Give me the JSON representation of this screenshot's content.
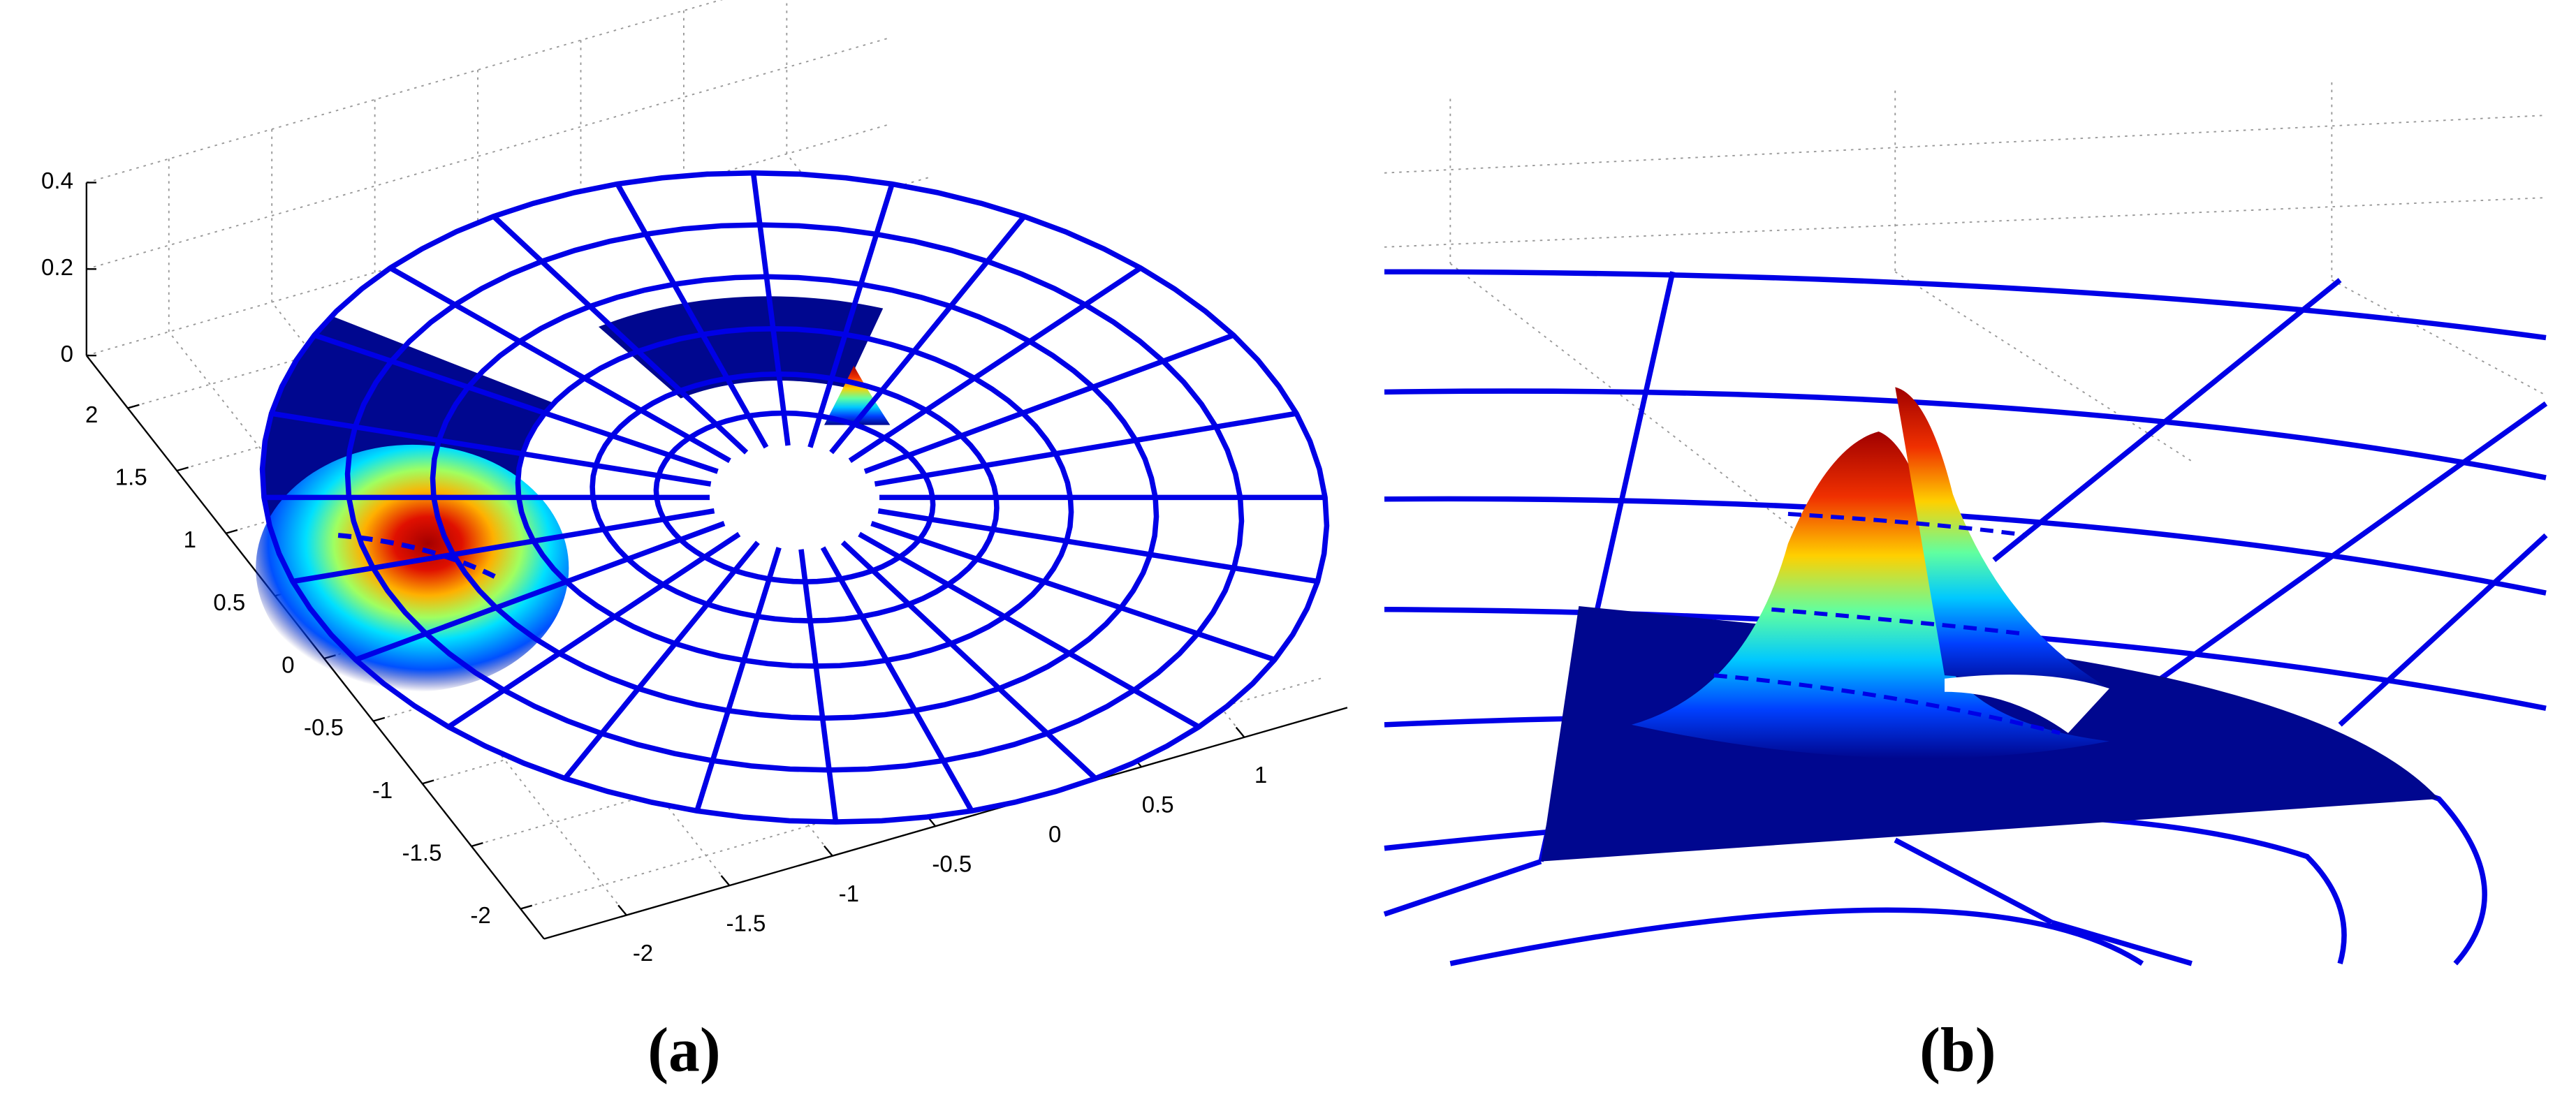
{
  "chart_data": [
    {
      "type": "surface3d",
      "label": "(a)",
      "xlim": [
        -2.4,
        1.5
      ],
      "xticks": [
        -2,
        -1.5,
        -1,
        -0.5,
        0,
        0.5,
        1
      ],
      "ylim": [
        -2.24,
        2.42
      ],
      "yticks": [
        -2,
        -1.5,
        -1,
        -0.5,
        0,
        0.5,
        1,
        1.5,
        2
      ],
      "zlim": [
        0,
        0.4
      ],
      "zticks": [
        0,
        0.2,
        0.4
      ],
      "grid": true,
      "mesh_color": "#0000e6"
    },
    {
      "type": "surface3d_zoom",
      "label": "(b)",
      "grid": true,
      "mesh_color": "#0000e6"
    }
  ]
}
